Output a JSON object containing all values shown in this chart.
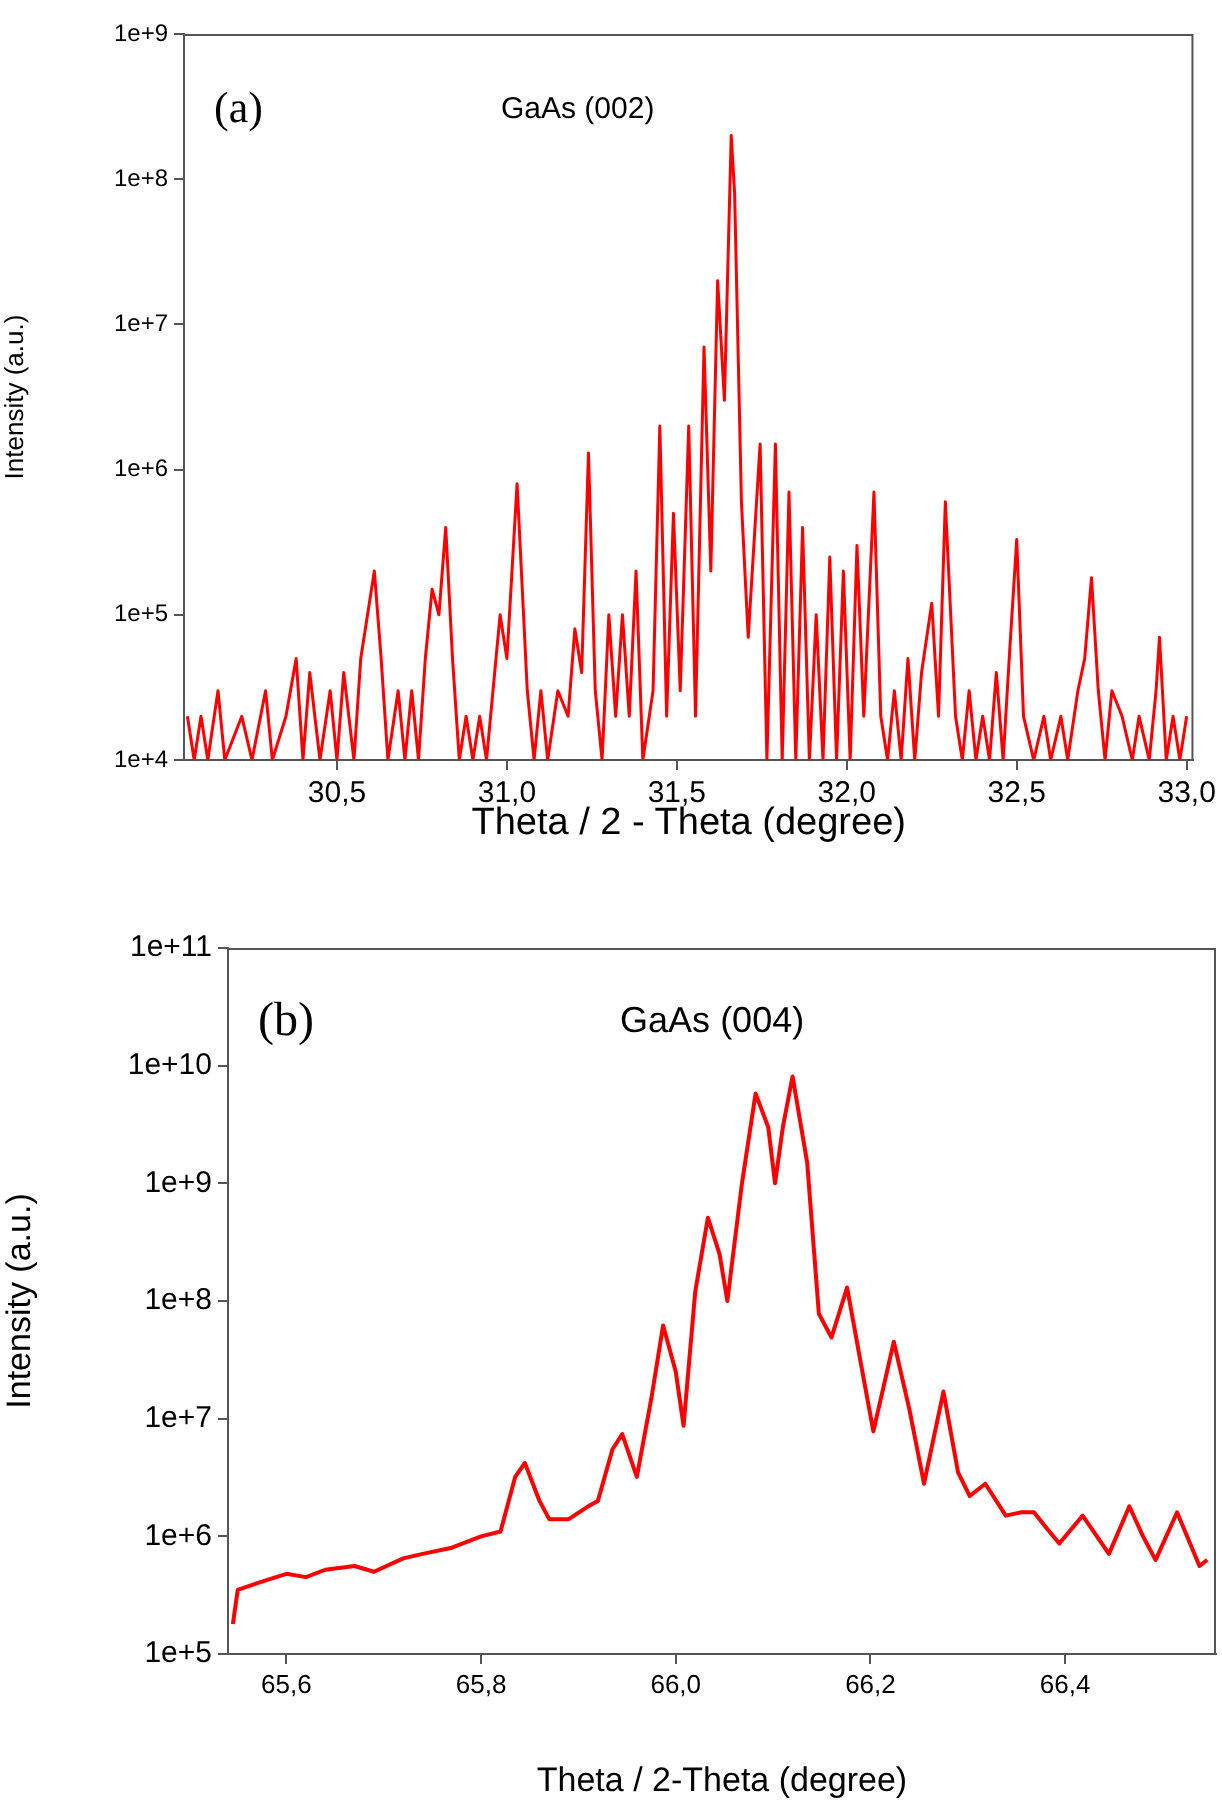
{
  "chart_data": [
    {
      "type": "line",
      "xlabel": "Theta / 2 - Theta (degree)",
      "ylabel": "Intensity (a.u.)",
      "log": "y",
      "annotations": [
        "(a)",
        "GaAs (002)"
      ],
      "xlim": [
        30.05,
        33.02
      ],
      "xticks": [
        {
          "value": 30.5,
          "label": "30,5"
        },
        {
          "value": 31.0,
          "label": "31,0"
        },
        {
          "value": 31.5,
          "label": "31,5"
        },
        {
          "value": 32.0,
          "label": "32,0"
        },
        {
          "value": 32.5,
          "label": "32,5"
        },
        {
          "value": 33.0,
          "label": "33,0"
        }
      ],
      "ylim": [
        10000.0,
        1000000000.0
      ],
      "yticks": [
        {
          "value": 10000.0,
          "label": "1e+4"
        },
        {
          "value": 100000.0,
          "label": "1e+5"
        },
        {
          "value": 1000000.0,
          "label": "1e+6"
        },
        {
          "value": 10000000.0,
          "label": "1e+7"
        },
        {
          "value": 100000000.0,
          "label": "1e+8"
        },
        {
          "value": 1000000000.0,
          "label": "1e+9"
        }
      ],
      "x": [
        30.06,
        30.08,
        30.1,
        30.12,
        30.15,
        30.17,
        30.22,
        30.25,
        30.29,
        30.31,
        30.35,
        30.38,
        30.4,
        30.42,
        30.45,
        30.48,
        30.5,
        30.52,
        30.55,
        30.57,
        30.59,
        30.61,
        30.63,
        30.65,
        30.68,
        30.7,
        30.72,
        30.74,
        30.76,
        30.78,
        30.8,
        30.82,
        30.84,
        30.86,
        30.88,
        30.9,
        30.92,
        30.94,
        30.98,
        31.0,
        31.03,
        31.06,
        31.08,
        31.1,
        31.12,
        31.15,
        31.18,
        31.2,
        31.22,
        31.24,
        31.26,
        31.28,
        31.3,
        31.32,
        31.34,
        31.36,
        31.38,
        31.4,
        31.43,
        31.45,
        31.47,
        31.49,
        31.51,
        31.535,
        31.555,
        31.58,
        31.6,
        31.62,
        31.64,
        31.66,
        31.67,
        31.69,
        31.71,
        31.745,
        31.765,
        31.79,
        31.81,
        31.83,
        31.85,
        31.87,
        31.89,
        31.91,
        31.93,
        31.95,
        31.97,
        31.99,
        32.01,
        32.03,
        32.05,
        32.08,
        32.1,
        32.12,
        32.14,
        32.16,
        32.18,
        32.2,
        32.22,
        32.25,
        32.27,
        32.29,
        32.32,
        32.34,
        32.36,
        32.38,
        32.4,
        32.42,
        32.44,
        32.46,
        32.48,
        32.5,
        32.52,
        32.55,
        32.58,
        32.6,
        32.63,
        32.65,
        32.68,
        32.7,
        32.72,
        32.74,
        32.76,
        32.78,
        32.81,
        32.84,
        32.86,
        32.89,
        32.91,
        32.92,
        32.94,
        32.96,
        32.98,
        33.0
      ],
      "series": [
        {
          "color": "#ff0000",
          "values": [
            20000.0,
            10000.0,
            20000.0,
            10000.0,
            30000.0,
            10000.0,
            20000.0,
            10000.0,
            30000.0,
            10000.0,
            20000.0,
            50000.0,
            10000.0,
            40000.0,
            10000.0,
            30000.0,
            10000.0,
            40000.0,
            10000.0,
            50000.0,
            100000.0,
            200000.0,
            50000.0,
            10000.0,
            30000.0,
            10000.0,
            30000.0,
            10000.0,
            50000.0,
            150000.0,
            100000.0,
            400000.0,
            50000.0,
            10000.0,
            20000.0,
            10000.0,
            20000.0,
            10000.0,
            100000.0,
            50000.0,
            800000.0,
            30000.0,
            10000.0,
            30000.0,
            10000.0,
            30000.0,
            20000.0,
            80000.0,
            40000.0,
            1300000.0,
            30000.0,
            10000.0,
            100000.0,
            20000.0,
            100000.0,
            20000.0,
            200000.0,
            10000.0,
            30000.0,
            2000000.0,
            20000.0,
            500000.0,
            30000.0,
            2000000.0,
            20000.0,
            7000000.0,
            200000.0,
            20000000.0,
            3000000.0,
            200000000.0,
            80000000.0,
            600000.0,
            70000.0,
            1500000.0,
            10000.0,
            1500000.0,
            10000.0,
            700000.0,
            10000.0,
            400000.0,
            10000.0,
            100000.0,
            10000.0,
            250000.0,
            10000.0,
            200000.0,
            10000.0,
            300000.0,
            20000.0,
            700000.0,
            20000.0,
            10000.0,
            30000.0,
            10000.0,
            50000.0,
            10000.0,
            40000.0,
            120000.0,
            20000.0,
            600000.0,
            20000.0,
            10000.0,
            30000.0,
            10000.0,
            20000.0,
            10000.0,
            40000.0,
            10000.0,
            60000.0,
            330000.0,
            20000.0,
            10000.0,
            20000.0,
            10000.0,
            20000.0,
            10000.0,
            30000.0,
            50000.0,
            180000.0,
            30000.0,
            10000.0,
            30000.0,
            20000.0,
            10000.0,
            20000.0,
            10000.0,
            30000.0,
            70000.0,
            10000.0,
            20000.0,
            10000.0,
            20000.0
          ]
        }
      ]
    },
    {
      "type": "line",
      "xlabel": "Theta / 2-Theta (degree)",
      "ylabel": "Intensity (a.u.)",
      "log": "y",
      "annotations": [
        "(b)",
        "GaAs (004)"
      ],
      "xlim": [
        65.54,
        66.555
      ],
      "xticks": [
        {
          "value": 65.6,
          "label": "65,6"
        },
        {
          "value": 65.8,
          "label": "65,8"
        },
        {
          "value": 66.0,
          "label": "66,0"
        },
        {
          "value": 66.2,
          "label": "66,2"
        },
        {
          "value": 66.4,
          "label": "66,4"
        }
      ],
      "ylim": [
        100000.0,
        100000000000.0
      ],
      "yticks": [
        {
          "value": 100000.0,
          "label": "1e+5"
        },
        {
          "value": 1000000.0,
          "label": "1e+6"
        },
        {
          "value": 10000000.0,
          "label": "1e+7"
        },
        {
          "value": 100000000.0,
          "label": "1e+8"
        },
        {
          "value": 1000000000.0,
          "label": "1e+9"
        },
        {
          "value": 10000000000.0,
          "label": "1e+10"
        },
        {
          "value": 100000000000.0,
          "label": "1e+11"
        }
      ],
      "x": [
        65.545,
        65.55,
        65.57,
        65.6,
        65.62,
        65.64,
        65.67,
        65.69,
        65.72,
        65.74,
        65.77,
        65.8,
        65.82,
        65.835,
        65.845,
        65.86,
        65.87,
        65.89,
        65.91,
        65.92,
        65.935,
        65.945,
        65.96,
        65.975,
        65.987,
        66.0,
        66.008,
        66.02,
        66.033,
        66.045,
        66.053,
        66.068,
        66.082,
        66.095,
        66.102,
        66.11,
        66.12,
        66.135,
        66.147,
        66.16,
        66.176,
        66.19,
        66.203,
        66.224,
        66.24,
        66.255,
        66.275,
        66.29,
        66.302,
        66.318,
        66.339,
        66.355,
        66.368,
        66.38,
        66.394,
        66.418,
        66.445,
        66.466,
        66.48,
        66.493,
        66.515,
        66.538,
        66.546
      ],
      "series": [
        {
          "color": "#ff0000",
          "values": [
            180000.0,
            350000.0,
            400000.0,
            480000.0,
            450000.0,
            520000.0,
            560000.0,
            500000.0,
            650000.0,
            710000.0,
            800000.0,
            1000000.0,
            1100000.0,
            3200000.0,
            4200000.0,
            2000000.0,
            1400000.0,
            1400000.0,
            1800000.0,
            2000000.0,
            5500000.0,
            7400000.0,
            3200000.0,
            15000000.0,
            62000000.0,
            25000000.0,
            8700000.0,
            120000000.0,
            510000000.0,
            250000000.0,
            100000000.0,
            1000000000.0,
            5800000000.0,
            3000000000.0,
            1000000000.0,
            3000000000.0,
            8100000000.0,
            1500000000.0,
            78000000.0,
            49000000.0,
            130000000.0,
            30000000.0,
            7800000.0,
            45000000.0,
            12000000.0,
            2800000.0,
            17000000.0,
            3500000.0,
            2200000.0,
            2800000.0,
            1500000.0,
            1600000.0,
            1600000.0,
            1200000.0,
            870000.0,
            1500000.0,
            710000.0,
            1800000.0,
            1000000.0,
            630000.0,
            1600000.0,
            560000.0,
            630000.0
          ]
        }
      ]
    }
  ]
}
